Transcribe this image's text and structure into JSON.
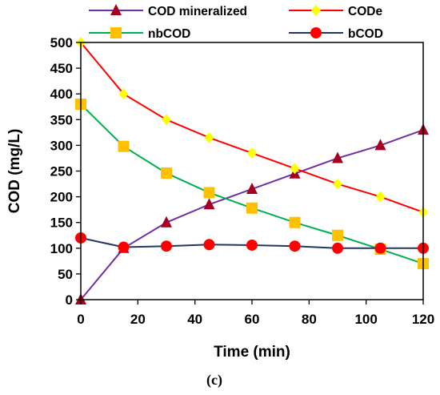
{
  "chart_data": {
    "type": "line",
    "title": "",
    "xlabel": "Time (min)",
    "ylabel": "COD (mg/L)",
    "caption": "(c)",
    "xlim": [
      0,
      120
    ],
    "ylim": [
      0,
      500
    ],
    "x_ticks": [
      0,
      20,
      40,
      60,
      80,
      100,
      120
    ],
    "y_ticks": [
      0,
      50,
      100,
      150,
      200,
      250,
      300,
      350,
      400,
      450,
      500
    ],
    "grid": false,
    "legend_position": "top",
    "x": [
      0,
      15,
      30,
      45,
      60,
      75,
      90,
      105,
      120
    ],
    "series": [
      {
        "name": "COD mineralized",
        "color": "#7030a0",
        "marker_color": "#a50021",
        "marker": "triangle",
        "values": [
          0,
          100,
          150,
          185,
          215,
          245,
          275,
          300,
          330
        ]
      },
      {
        "name": "CODe",
        "color": "#ff0000",
        "marker_color": "#ffff00",
        "marker": "diamond",
        "values": [
          500,
          400,
          350,
          315,
          285,
          255,
          225,
          200,
          170
        ]
      },
      {
        "name": "nbCOD",
        "color": "#00b050",
        "marker_color": "#ffc000",
        "marker": "square",
        "values": [
          380,
          298,
          246,
          208,
          178,
          150,
          125,
          98,
          70
        ]
      },
      {
        "name": "bCOD",
        "color": "#203864",
        "marker_color": "#ff0000",
        "marker": "circle",
        "values": [
          120,
          102,
          104,
          107,
          106,
          104,
          100,
          100,
          100
        ]
      }
    ]
  }
}
